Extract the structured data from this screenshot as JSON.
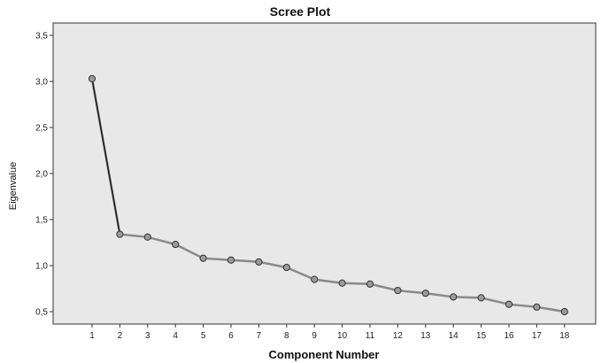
{
  "chart_data": {
    "type": "line",
    "title": "Scree Plot",
    "xlabel": "Component Number",
    "ylabel": "Eigenvalue",
    "x": [
      "1",
      "2",
      "3",
      "4",
      "5",
      "6",
      "7",
      "8",
      "9",
      "10",
      "11",
      "12",
      "13",
      "14",
      "15",
      "16",
      "17",
      "18"
    ],
    "values": [
      3.03,
      1.34,
      1.31,
      1.23,
      1.08,
      1.06,
      1.04,
      0.98,
      0.85,
      0.81,
      0.8,
      0.73,
      0.7,
      0.66,
      0.65,
      0.58,
      0.55,
      0.5
    ],
    "yticks": [
      "0,5",
      "1,0",
      "1,5",
      "2,0",
      "2,5",
      "3,0",
      "3,5"
    ],
    "ylim": [
      0.5,
      3.5
    ],
    "grid": false,
    "colors": {
      "line": "#8a8a8a",
      "plot_background": "#e8e8e8",
      "marker": "#9a9a9a"
    }
  }
}
